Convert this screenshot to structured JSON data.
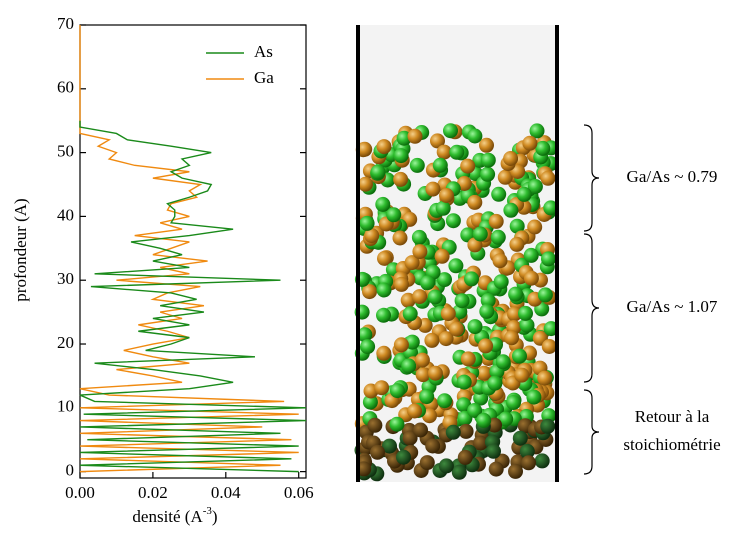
{
  "chart_data": {
    "type": "line",
    "orientation": "horizontal",
    "x_label": [
      "densité (A",
      "-3",
      ")"
    ],
    "y_label": "profondeur (A)",
    "xlim": [
      0,
      0.062
    ],
    "ylim": [
      -1,
      70
    ],
    "xticks": [
      {
        "value": 0,
        "label": "0.00"
      },
      {
        "value": 0.02,
        "label": "0.02"
      },
      {
        "value": 0.04,
        "label": "0.04"
      },
      {
        "value": 0.06,
        "label": "0.06"
      }
    ],
    "yticks": [
      0,
      10,
      20,
      30,
      40,
      50,
      60,
      70
    ],
    "legend": "top-right",
    "y": [
      0,
      1,
      2,
      3,
      4,
      5,
      6,
      7,
      8,
      9,
      10,
      11,
      12,
      13,
      14,
      15,
      16,
      17,
      18,
      19,
      20,
      21,
      22,
      23,
      24,
      25,
      26,
      27,
      28,
      29,
      30,
      31,
      32,
      33,
      34,
      35,
      36,
      37,
      38,
      39,
      40,
      41,
      42,
      43,
      44,
      45,
      46,
      47,
      48,
      49,
      50,
      51,
      52,
      53,
      54,
      55,
      70
    ],
    "series": [
      {
        "name": "As",
        "color": "#1a8a1a",
        "values": [
          0.06,
          0.0,
          0.058,
          0.0,
          0.06,
          0.002,
          0.055,
          0.0,
          0.062,
          0.001,
          0.062,
          0.004,
          0.0,
          0.03,
          0.042,
          0.033,
          0.02,
          0.004,
          0.048,
          0.018,
          0.025,
          0.03,
          0.016,
          0.03,
          0.02,
          0.034,
          0.022,
          0.032,
          0.025,
          0.003,
          0.055,
          0.004,
          0.03,
          0.02,
          0.028,
          0.022,
          0.014,
          0.03,
          0.042,
          0.025,
          0.026,
          0.026,
          0.024,
          0.03,
          0.035,
          0.036,
          0.028,
          0.025,
          0.03,
          0.028,
          0.036,
          0.025,
          0.013,
          0.01,
          0.0,
          0.0,
          null
        ]
      },
      {
        "name": "Ga",
        "color": "#f08a10",
        "values": [
          0.0,
          0.055,
          0.0,
          0.06,
          0.0,
          0.058,
          0.0,
          0.05,
          0.0,
          0.06,
          0.0,
          0.056,
          0.008,
          0.0,
          0.028,
          0.02,
          0.01,
          0.03,
          0.02,
          0.012,
          0.02,
          0.03,
          0.024,
          0.016,
          0.028,
          0.022,
          0.034,
          0.02,
          0.024,
          0.033,
          0.01,
          0.03,
          0.022,
          0.035,
          0.02,
          0.025,
          0.03,
          0.015,
          0.028,
          0.022,
          0.03,
          0.024,
          0.025,
          0.032,
          0.03,
          0.033,
          0.02,
          0.03,
          0.015,
          0.008,
          0.01,
          0.005,
          0.008,
          0.0,
          0.0,
          0.0,
          0.0
        ]
      }
    ]
  },
  "annotations": [
    "Ga/As ~ 0.79",
    "Ga/As ~ 1.07",
    "Retour à la",
    "stoichiométrie"
  ]
}
